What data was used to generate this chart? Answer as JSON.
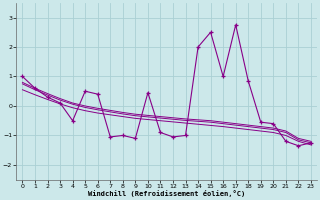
{
  "xlabel": "Windchill (Refroidissement éolien,°C)",
  "background_color": "#cce8ea",
  "grid_color": "#aad0d4",
  "line_color": "#880088",
  "xlim": [
    -0.5,
    23.5
  ],
  "ylim": [
    -2.5,
    3.5
  ],
  "yticks": [
    -2,
    -1,
    0,
    1,
    2,
    3
  ],
  "xticks": [
    0,
    1,
    2,
    3,
    4,
    5,
    6,
    7,
    8,
    9,
    10,
    11,
    12,
    13,
    14,
    15,
    16,
    17,
    18,
    19,
    20,
    21,
    22,
    23
  ],
  "x": [
    0,
    1,
    2,
    3,
    4,
    5,
    6,
    7,
    8,
    9,
    10,
    11,
    12,
    13,
    14,
    15,
    16,
    17,
    18,
    19,
    20,
    21,
    22,
    23
  ],
  "y_main": [
    1.0,
    0.6,
    0.3,
    0.1,
    -0.5,
    0.5,
    0.4,
    -1.05,
    -1.0,
    -1.1,
    0.45,
    -0.9,
    -1.05,
    -1.0,
    2.0,
    2.5,
    1.0,
    2.75,
    0.85,
    -0.55,
    -0.6,
    -1.2,
    -1.35,
    -1.25
  ],
  "y_trend1": [
    0.8,
    0.6,
    0.42,
    0.25,
    0.1,
    0.0,
    -0.08,
    -0.15,
    -0.22,
    -0.28,
    -0.32,
    -0.36,
    -0.4,
    -0.44,
    -0.47,
    -0.5,
    -0.55,
    -0.6,
    -0.65,
    -0.7,
    -0.75,
    -0.85,
    -1.1,
    -1.2
  ],
  "y_trend2": [
    0.75,
    0.55,
    0.37,
    0.2,
    0.06,
    -0.05,
    -0.13,
    -0.2,
    -0.27,
    -0.33,
    -0.37,
    -0.41,
    -0.45,
    -0.49,
    -0.52,
    -0.55,
    -0.6,
    -0.65,
    -0.7,
    -0.75,
    -0.8,
    -0.9,
    -1.15,
    -1.25
  ],
  "y_trend3": [
    0.55,
    0.38,
    0.22,
    0.07,
    -0.06,
    -0.16,
    -0.24,
    -0.3,
    -0.36,
    -0.42,
    -0.46,
    -0.5,
    -0.54,
    -0.58,
    -0.62,
    -0.66,
    -0.7,
    -0.75,
    -0.8,
    -0.85,
    -0.9,
    -1.0,
    -1.2,
    -1.32
  ]
}
